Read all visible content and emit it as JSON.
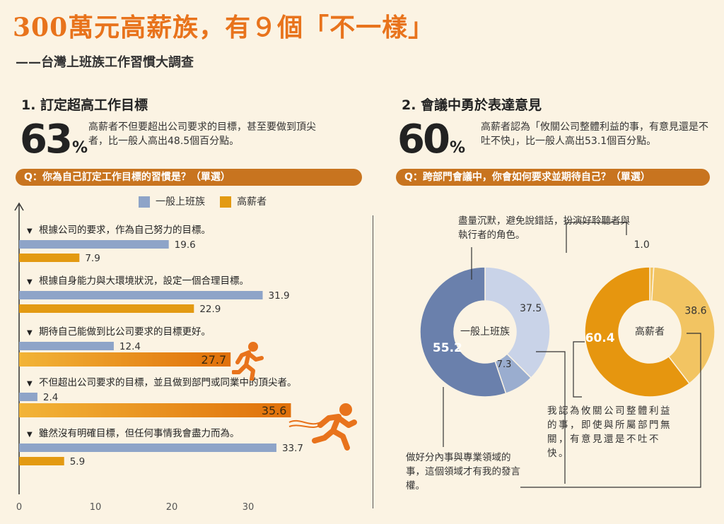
{
  "header": {
    "title": "300萬元高薪族，有９個「不一樣」",
    "subtitle": "——台灣上班族工作習慣大調查"
  },
  "section1": {
    "heading": "1. 訂定超高工作目標",
    "big_number": "63",
    "big_unit": "%",
    "description": "高薪者不但要超出公司要求的目標，甚至要做到頂尖者，比一般人高出48.5個百分點。",
    "question": "Q：你為自己訂定工作目標的習慣是？（單選）"
  },
  "section2": {
    "heading": "2. 會議中勇於表達意見",
    "big_number": "60",
    "big_unit": "%",
    "description": "高薪者認為「攸關公司整體利益的事，有意見還是不吐不快」，比一般人高出53.1個百分點。",
    "question": "Q：跨部門會議中，你會如何要求並期待自己？（單選）"
  },
  "colors": {
    "general": "#8ea4c8",
    "high": "#e39a12",
    "high_gradient_start": "#f2b437",
    "high_gradient_end": "#e0700a",
    "accent": "#c8741f",
    "donut_general_dark": "#6a80ac",
    "donut_general_light": "#c9d3e8",
    "donut_general_mid": "#9aadcf",
    "donut_high_dark": "#e6960f",
    "donut_high_light": "#f2c462"
  },
  "chart_data": [
    {
      "type": "bar",
      "orientation": "horizontal",
      "legend": [
        "一般上班族",
        "高薪者"
      ],
      "legend_position": "top",
      "categories": [
        "根據公司的要求，作為自己努力的目標。",
        "根據自身能力與大環境狀況，設定一個合理目標。",
        "期待自己能做到比公司要求的目標更好。",
        "不但超出公司要求的目標，並且做到部門或同業中的頂尖者。",
        "雖然沒有明確目標，但任何事情我會盡力而為。"
      ],
      "series": [
        {
          "name": "一般上班族",
          "values": [
            19.6,
            31.9,
            12.4,
            2.4,
            33.7
          ]
        },
        {
          "name": "高薪者",
          "values": [
            7.9,
            22.9,
            27.7,
            35.6,
            5.9
          ]
        }
      ],
      "xticks": [
        "0",
        "10",
        "20",
        "30"
      ],
      "xlim": [
        0,
        35
      ],
      "grid": false
    },
    {
      "type": "pie",
      "center_label": "一般上班族",
      "values": [
        37.5,
        7.3,
        55.2
      ],
      "labels": [
        "37.5",
        "7.3",
        "55.2"
      ]
    },
    {
      "type": "pie",
      "center_label": "高薪者",
      "values": [
        1.0,
        38.6,
        60.4
      ],
      "labels": [
        "1.0",
        "38.6",
        "60.4"
      ]
    }
  ],
  "annotations": {
    "silent": "盡量沉默，避免說錯話，扮演好聆聽者與執行者的角色。",
    "speak": "我認為攸關公司整體利益的事，即使與所屬部門無關，有意見還是不吐不快。",
    "own_domain": "做好分內事與專業領域的事，這個領域才有我的發言權。"
  }
}
